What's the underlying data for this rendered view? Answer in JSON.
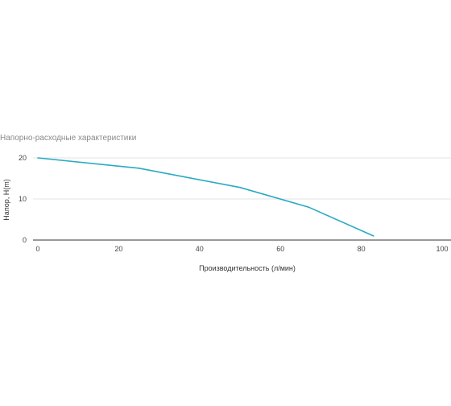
{
  "chart_data": {
    "type": "line",
    "title": "Напорно-расходные характеристики",
    "xlabel": "Производительность (л/мин)",
    "ylabel": "Напор, H(m)",
    "xlim": [
      0,
      100
    ],
    "ylim": [
      0,
      20
    ],
    "x_ticks": [
      "0",
      "20",
      "40",
      "60",
      "80",
      "100"
    ],
    "y_ticks": [
      "0",
      "10",
      "20"
    ],
    "grid": true,
    "series": [
      {
        "color": "#29aac2",
        "points": [
          {
            "x": 0,
            "y": 20
          },
          {
            "x": 25,
            "y": 17.5
          },
          {
            "x": 50,
            "y": 12.8
          },
          {
            "x": 67,
            "y": 8
          },
          {
            "x": 83,
            "y": 1
          }
        ]
      }
    ]
  }
}
